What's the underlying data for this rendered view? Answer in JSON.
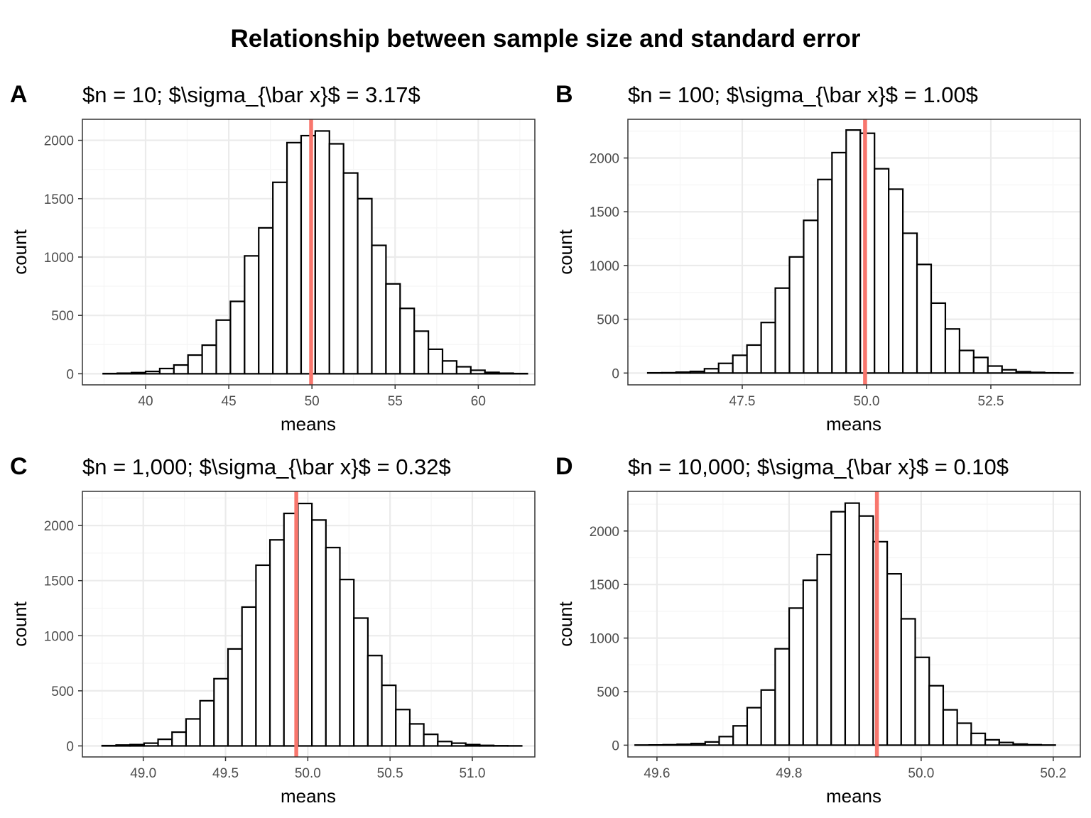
{
  "title": "Relationship between sample size and standard error",
  "colors": {
    "bar_fill": "#ffffff",
    "bar_stroke": "#000000",
    "mean_line": "#f8766d",
    "grid_major": "#ebebeb",
    "grid_minor": "#f5f5f5",
    "panel_border": "#333333"
  },
  "chart_data": [
    {
      "type": "bar",
      "tag": "A",
      "title": "$n = 10; $\\sigma_{\\bar x}$ = 3.17$",
      "xlabel": "means",
      "ylabel": "count",
      "xlim": [
        36.2,
        63.4
      ],
      "ylim": [
        -95,
        2180
      ],
      "xticks": [
        "40",
        "45",
        "50",
        "55",
        "60"
      ],
      "xtick_values": [
        40,
        45,
        50,
        55,
        60
      ],
      "yticks": [
        "0",
        "500",
        "1000",
        "1500",
        "2000"
      ],
      "ytick_values": [
        0,
        500,
        1000,
        1500,
        2000
      ],
      "bin_start": 37.45,
      "bin_width": 0.85,
      "values": [
        2,
        5,
        10,
        20,
        45,
        75,
        160,
        245,
        460,
        620,
        1010,
        1250,
        1640,
        1980,
        2040,
        2080,
        1970,
        1720,
        1500,
        1100,
        770,
        560,
        365,
        210,
        110,
        60,
        30,
        12,
        5,
        2
      ],
      "mean_line": 49.95
    },
    {
      "type": "bar",
      "tag": "B",
      "title": "$n = 100; $\\sigma_{\\bar x}$ = 1.00$",
      "xlabel": "means",
      "ylabel": "count",
      "xlim": [
        45.2,
        54.3
      ],
      "ylim": [
        -110,
        2360
      ],
      "xticks": [
        "47.5",
        "50.0",
        "52.5"
      ],
      "xtick_values": [
        47.5,
        50.0,
        52.5
      ],
      "yticks": [
        "0",
        "500",
        "1000",
        "1500",
        "2000"
      ],
      "ytick_values": [
        0,
        500,
        1000,
        1500,
        2000
      ],
      "bin_start": 45.6,
      "bin_width": 0.285,
      "values": [
        2,
        3,
        8,
        15,
        40,
        90,
        165,
        260,
        470,
        790,
        1080,
        1420,
        1800,
        2050,
        2260,
        2230,
        1900,
        1710,
        1300,
        1010,
        650,
        410,
        210,
        145,
        65,
        30,
        12,
        6,
        2,
        1
      ],
      "mean_line": 49.97
    },
    {
      "type": "bar",
      "tag": "C",
      "title": "$n = 1,000; $\\sigma_{\\bar x}$ = 0.32$",
      "xlabel": "means",
      "ylabel": "count",
      "xlim": [
        48.63,
        51.38
      ],
      "ylim": [
        -100,
        2310
      ],
      "xticks": [
        "49.0",
        "49.5",
        "50.0",
        "50.5",
        "51.0"
      ],
      "xtick_values": [
        49.0,
        49.5,
        50.0,
        50.5,
        51.0
      ],
      "yticks": [
        "0",
        "500",
        "1000",
        "1500",
        "2000"
      ],
      "ytick_values": [
        0,
        500,
        1000,
        1500,
        2000
      ],
      "bin_start": 48.75,
      "bin_width": 0.085,
      "values": [
        3,
        8,
        12,
        25,
        60,
        125,
        245,
        410,
        610,
        880,
        1260,
        1640,
        1870,
        2110,
        2200,
        2050,
        1800,
        1510,
        1160,
        820,
        550,
        330,
        200,
        105,
        40,
        25,
        12,
        5,
        2,
        1
      ],
      "mean_line": 49.93
    },
    {
      "type": "bar",
      "tag": "D",
      "title": "$n = 10,000; $\\sigma_{\\bar x}$ = 0.10$",
      "xlabel": "means",
      "ylabel": "count",
      "xlim": [
        49.556,
        50.241
      ],
      "ylim": [
        -110,
        2370
      ],
      "xticks": [
        "49.6",
        "49.8",
        "50.0",
        "50.2"
      ],
      "xtick_values": [
        49.6,
        49.8,
        50.0,
        50.2
      ],
      "yticks": [
        "0",
        "500",
        "1000",
        "1500",
        "2000"
      ],
      "ytick_values": [
        0,
        500,
        1000,
        1500,
        2000
      ],
      "bin_start": 49.567,
      "bin_width": 0.0212,
      "values": [
        1,
        2,
        4,
        8,
        15,
        30,
        80,
        180,
        350,
        515,
        900,
        1280,
        1540,
        1780,
        2180,
        2260,
        2140,
        1900,
        1600,
        1180,
        820,
        555,
        330,
        205,
        110,
        50,
        25,
        10,
        4,
        1
      ],
      "mean_line": 49.933
    }
  ]
}
